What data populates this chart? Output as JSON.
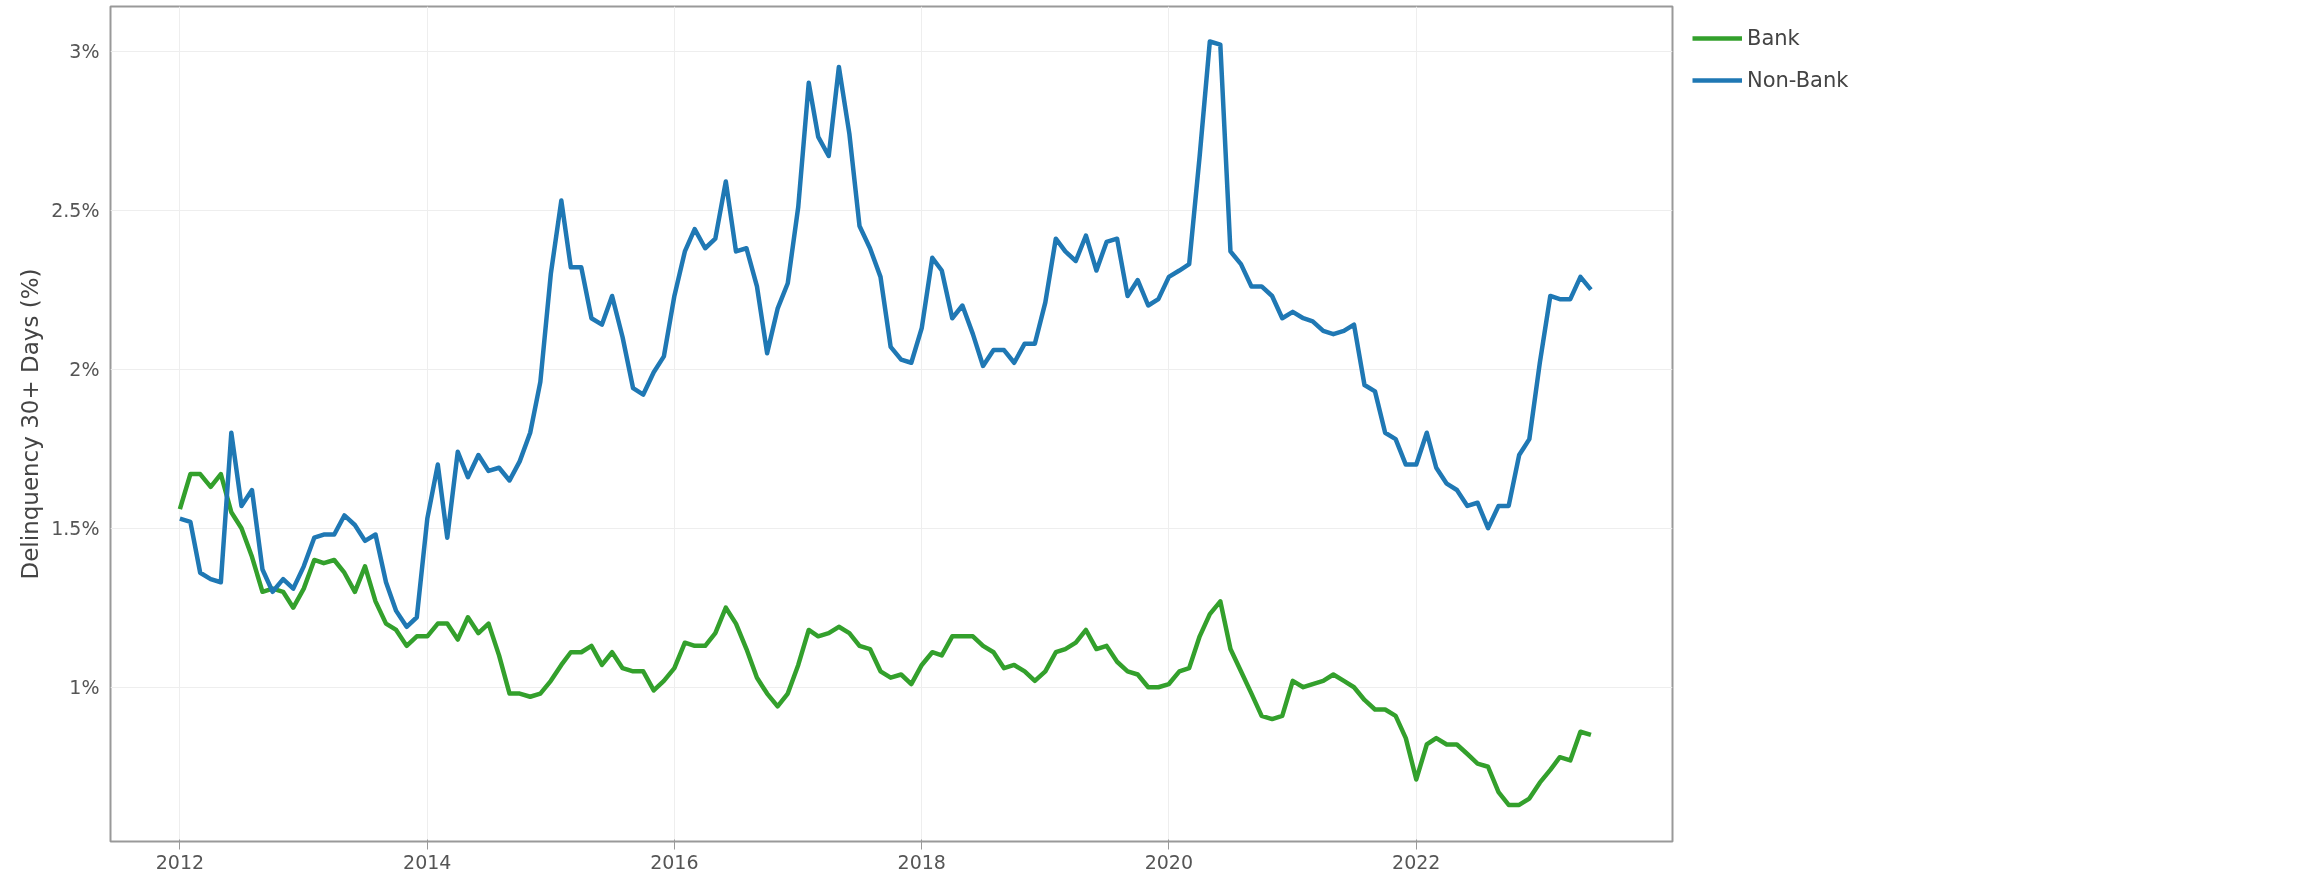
{
  "chart_data": {
    "type": "line",
    "ylabel": "Delinquency 30+ Days (%)",
    "x": [
      "2012-01",
      "2012-02",
      "2012-03",
      "2012-04",
      "2012-05",
      "2012-06",
      "2012-07",
      "2012-08",
      "2012-09",
      "2012-10",
      "2012-11",
      "2012-12",
      "2013-01",
      "2013-02",
      "2013-03",
      "2013-04",
      "2013-05",
      "2013-06",
      "2013-07",
      "2013-08",
      "2013-09",
      "2013-10",
      "2013-11",
      "2013-12",
      "2014-01",
      "2014-02",
      "2014-03",
      "2014-04",
      "2014-05",
      "2014-06",
      "2014-07",
      "2014-08",
      "2014-09",
      "2014-10",
      "2014-11",
      "2014-12",
      "2015-01",
      "2015-02",
      "2015-03",
      "2015-04",
      "2015-05",
      "2015-06",
      "2015-07",
      "2015-08",
      "2015-09",
      "2015-10",
      "2015-11",
      "2015-12",
      "2016-01",
      "2016-02",
      "2016-03",
      "2016-04",
      "2016-05",
      "2016-06",
      "2016-07",
      "2016-08",
      "2016-09",
      "2016-10",
      "2016-11",
      "2016-12",
      "2017-01",
      "2017-02",
      "2017-03",
      "2017-04",
      "2017-05",
      "2017-06",
      "2017-07",
      "2017-08",
      "2017-09",
      "2017-10",
      "2017-11",
      "2017-12",
      "2018-01",
      "2018-02",
      "2018-03",
      "2018-04",
      "2018-05",
      "2018-06",
      "2018-07",
      "2018-08",
      "2018-09",
      "2018-10",
      "2018-11",
      "2018-12",
      "2019-01",
      "2019-02",
      "2019-03",
      "2019-04",
      "2019-05",
      "2019-06",
      "2019-07",
      "2019-08",
      "2019-09",
      "2019-10",
      "2019-11",
      "2019-12",
      "2020-01",
      "2020-02",
      "2020-03",
      "2020-04",
      "2020-05",
      "2020-06",
      "2020-07",
      "2020-08",
      "2020-09",
      "2020-10",
      "2020-11",
      "2020-12",
      "2021-01",
      "2021-02",
      "2021-03",
      "2021-04",
      "2021-05",
      "2021-06",
      "2021-07",
      "2021-08",
      "2021-09",
      "2021-10",
      "2021-11",
      "2021-12",
      "2022-01",
      "2022-02",
      "2022-03",
      "2022-04",
      "2022-05",
      "2022-06",
      "2022-07",
      "2022-08",
      "2022-09",
      "2022-10",
      "2022-11",
      "2022-12",
      "2023-01",
      "2023-02",
      "2023-03",
      "2023-04",
      "2023-05",
      "2023-06"
    ],
    "series": [
      {
        "name": "Bank",
        "color": "#33a02c",
        "values": [
          1.56,
          1.67,
          1.67,
          1.63,
          1.67,
          1.55,
          1.5,
          1.41,
          1.3,
          1.31,
          1.3,
          1.25,
          1.31,
          1.4,
          1.39,
          1.4,
          1.36,
          1.3,
          1.38,
          1.27,
          1.2,
          1.18,
          1.13,
          1.16,
          1.16,
          1.2,
          1.2,
          1.15,
          1.22,
          1.17,
          1.2,
          1.1,
          0.98,
          0.98,
          0.97,
          0.98,
          1.02,
          1.07,
          1.11,
          1.11,
          1.13,
          1.07,
          1.11,
          1.06,
          1.05,
          1.05,
          0.99,
          1.02,
          1.06,
          1.14,
          1.13,
          1.13,
          1.17,
          1.25,
          1.2,
          1.12,
          1.03,
          0.98,
          0.94,
          0.98,
          1.07,
          1.18,
          1.16,
          1.17,
          1.19,
          1.17,
          1.13,
          1.12,
          1.05,
          1.03,
          1.04,
          1.01,
          1.07,
          1.11,
          1.1,
          1.16,
          1.16,
          1.16,
          1.13,
          1.11,
          1.06,
          1.07,
          1.05,
          1.02,
          1.05,
          1.11,
          1.12,
          1.14,
          1.18,
          1.12,
          1.13,
          1.08,
          1.05,
          1.04,
          1.0,
          1.0,
          1.01,
          1.05,
          1.06,
          1.16,
          1.23,
          1.27,
          1.12,
          1.05,
          0.98,
          0.91,
          0.9,
          0.91,
          1.02,
          1.0,
          1.01,
          1.02,
          1.04,
          1.02,
          1.0,
          0.96,
          0.93,
          0.93,
          0.91,
          0.84,
          0.71,
          0.82,
          0.84,
          0.82,
          0.82,
          0.79,
          0.76,
          0.75,
          0.67,
          0.63,
          0.63,
          0.65,
          0.7,
          0.74,
          0.78,
          0.77,
          0.86,
          0.85
        ]
      },
      {
        "name": "Non-Bank",
        "color": "#1f78b4",
        "values": [
          1.53,
          1.52,
          1.36,
          1.34,
          1.33,
          1.8,
          1.57,
          1.62,
          1.37,
          1.3,
          1.34,
          1.31,
          1.38,
          1.47,
          1.48,
          1.48,
          1.54,
          1.51,
          1.46,
          1.48,
          1.33,
          1.24,
          1.19,
          1.22,
          1.53,
          1.7,
          1.47,
          1.74,
          1.66,
          1.73,
          1.68,
          1.69,
          1.65,
          1.71,
          1.8,
          1.96,
          2.3,
          2.53,
          2.32,
          2.32,
          2.16,
          2.14,
          2.23,
          2.1,
          1.94,
          1.92,
          1.99,
          2.04,
          2.23,
          2.37,
          2.44,
          2.38,
          2.41,
          2.59,
          2.37,
          2.38,
          2.26,
          2.05,
          2.19,
          2.27,
          2.51,
          2.9,
          2.73,
          2.67,
          2.95,
          2.74,
          2.45,
          2.38,
          2.29,
          2.07,
          2.03,
          2.02,
          2.13,
          2.35,
          2.31,
          2.16,
          2.2,
          2.11,
          2.01,
          2.06,
          2.06,
          2.02,
          2.08,
          2.08,
          2.21,
          2.41,
          2.37,
          2.34,
          2.42,
          2.31,
          2.4,
          2.41,
          2.23,
          2.28,
          2.2,
          2.22,
          2.29,
          2.31,
          2.33,
          2.67,
          3.03,
          3.02,
          2.37,
          2.33,
          2.26,
          2.26,
          2.23,
          2.16,
          2.18,
          2.16,
          2.15,
          2.12,
          2.11,
          2.12,
          2.14,
          1.95,
          1.93,
          1.8,
          1.78,
          1.7,
          1.7,
          1.8,
          1.69,
          1.64,
          1.62,
          1.57,
          1.58,
          1.5,
          1.57,
          1.57,
          1.73,
          1.78,
          2.02,
          2.23,
          2.22,
          2.22,
          2.29,
          2.25
        ]
      }
    ],
    "xlim": [
      "2011-06-10",
      "2024-01-28"
    ],
    "xticks": [
      {
        "value": "2012-01-01",
        "label": "2012"
      },
      {
        "value": "2014-01-01",
        "label": "2014"
      },
      {
        "value": "2016-01-01",
        "label": "2016"
      },
      {
        "value": "2018-01-01",
        "label": "2018"
      },
      {
        "value": "2020-01-01",
        "label": "2020"
      },
      {
        "value": "2022-01-01",
        "label": "2022"
      }
    ],
    "ylim": [
      0.515,
      3.14
    ],
    "yticks": [
      {
        "value": 1,
        "label": "1%"
      },
      {
        "value": 1.5,
        "label": "1.5%"
      },
      {
        "value": 2,
        "label": "2%"
      },
      {
        "value": 2.5,
        "label": "2.5%"
      },
      {
        "value": 3,
        "label": "3%"
      }
    ],
    "grid": true,
    "legend": "top right",
    "marker": "none",
    "line_style": "solid"
  }
}
